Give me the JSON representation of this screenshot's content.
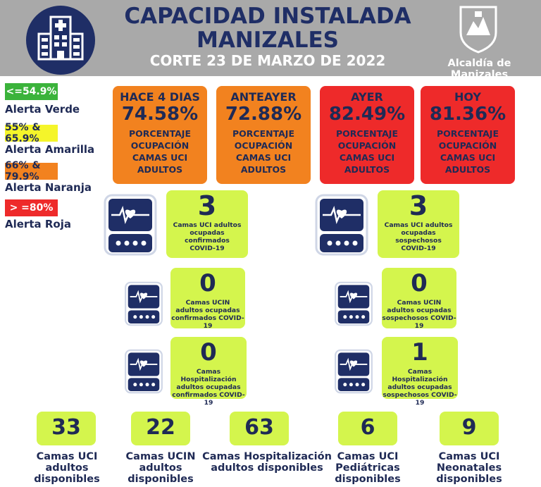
{
  "header": {
    "title_line1": "CAPACIDAD INSTALADA",
    "title_line2": "MANIZALES",
    "subtitle": "CORTE 23 DE MARZO DE 2022",
    "crest_label": "Alcaldía de Manizales"
  },
  "legend": [
    {
      "range": "<=54.9%",
      "label": "Alerta Verde",
      "color": "#3bb33b"
    },
    {
      "range": "55% & 65.9%",
      "label": "Alerta Amarilla",
      "color": "#f5f52a"
    },
    {
      "range": "66% & 79.9%",
      "label": "Alerta Naranja",
      "color": "#f2821f"
    },
    {
      "range": "> =80%",
      "label": "Alerta Roja",
      "color": "#ee2a2a"
    }
  ],
  "occupancy": [
    {
      "label": "HACE 4 DIAS",
      "value": "74.58%",
      "desc": [
        "PORCENTAJE",
        "OCUPACIÓN",
        "CAMAS UCI",
        "ADULTOS"
      ],
      "color": "#f2821f"
    },
    {
      "label": "ANTEAYER",
      "value": "72.88%",
      "desc": [
        "PORCENTAJE",
        "OCUPACIÓN",
        "CAMAS UCI",
        "ADULTOS"
      ],
      "color": "#f2821f"
    },
    {
      "label": "AYER",
      "value": "82.49%",
      "desc": [
        "PORCENTAJE",
        "OCUPACIÓN",
        "CAMAS UCI",
        "ADULTOS"
      ],
      "color": "#ee2a2a"
    },
    {
      "label": "HOY",
      "value": "81.36%",
      "desc": [
        "PORCENTAJE",
        "OCUPACIÓN",
        "CAMAS UCI",
        "ADULTOS"
      ],
      "color": "#ee2a2a"
    }
  ],
  "beds": {
    "uci_confirmados": {
      "value": "3",
      "desc": [
        "Camas UCI adultos",
        "ocupadas confirmados",
        "COVID-19"
      ]
    },
    "uci_sospechosos": {
      "value": "3",
      "desc": [
        "Camas UCI adultos",
        "ocupadas sospechosos",
        "COVID-19"
      ]
    },
    "ucin_confirmados": {
      "value": "0",
      "desc": [
        "Camas  UCIN",
        "adultos ocupadas",
        "confirmados COVID-19"
      ]
    },
    "ucin_sospechosos": {
      "value": "0",
      "desc": [
        "Camas  UCIN",
        "adultos ocupadas",
        "sospechosos COVID-19"
      ]
    },
    "hosp_confirmados": {
      "value": "0",
      "desc": [
        "Camas  Hospitalización",
        "adultos ocupadas",
        "confirmados COVID-19"
      ]
    },
    "hosp_sospechosos": {
      "value": "1",
      "desc": [
        "Camas  Hospitalización",
        "adultos ocupadas",
        "sospechosos COVID-19"
      ]
    }
  },
  "available": [
    {
      "value": "33",
      "label": [
        "Camas UCI",
        "adultos",
        "disponibles"
      ]
    },
    {
      "value": "22",
      "label": [
        "Camas UCIN",
        "adultos",
        "disponibles"
      ]
    },
    {
      "value": "63",
      "label": [
        "Camas  Hospitalización",
        "adultos disponibles"
      ]
    },
    {
      "value": "6",
      "label": [
        "Camas  UCI",
        "Pediátricas",
        "disponibles"
      ]
    },
    {
      "value": "9",
      "label": [
        "Camas  UCI",
        "Neonatales",
        "disponibles"
      ]
    }
  ],
  "icons": {
    "hospital": "hospital-icon",
    "crest": "city-crest-icon",
    "monitor": "heart-monitor-icon"
  }
}
